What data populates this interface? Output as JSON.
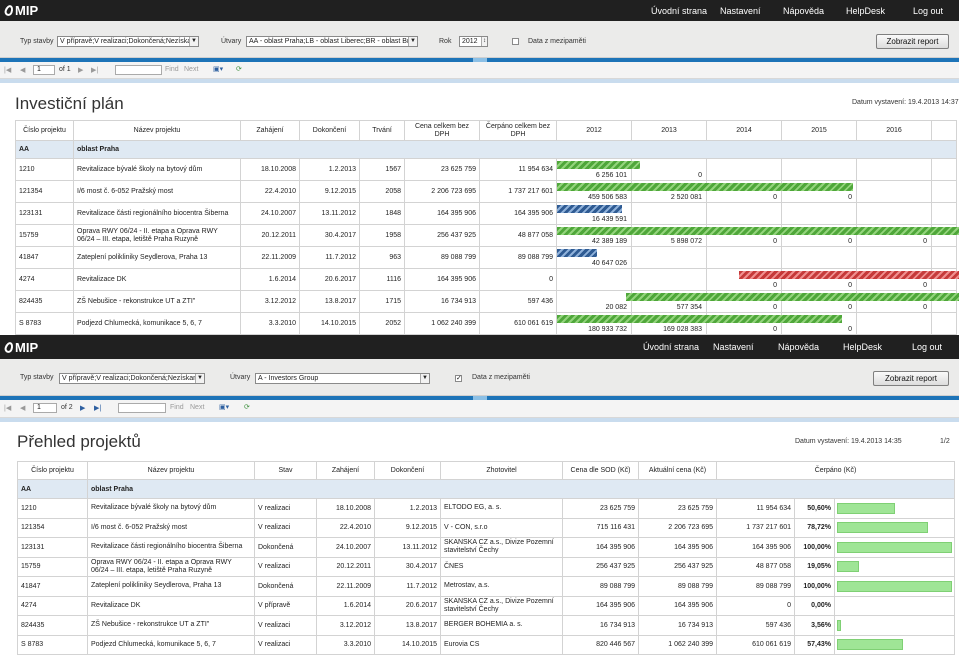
{
  "nav": {
    "logo": "MIP",
    "items": [
      "Úvodní strana",
      "Nastavení",
      "Nápověda",
      "HelpDesk",
      "Log out"
    ]
  },
  "top": {
    "filters": {
      "typ_label": "Typ stavby",
      "typ_value": "V přípravě;V realizaci;Dokončená;Nezískan",
      "utvary_label": "Útvary",
      "utvary_value": "AA - oblast Praha;LB - oblast Liberec;BR - oblast Br",
      "rok_label": "Rok",
      "rok_value": "2012",
      "cache_label": "Data z mezipaměti",
      "cache_checked": false,
      "show_button": "Zobrazit report"
    },
    "toolbar": {
      "page": "1",
      "of": "of 1",
      "find": "Find",
      "next": "Next"
    },
    "title": "Investiční plán",
    "date": "Datum vystavení: 19.4.2013 14:37",
    "headers": [
      "Číslo projektu",
      "Název projektu",
      "Zahájení",
      "Dokončení",
      "Trvání",
      "Cena celkem bez DPH",
      "Čerpáno celkem bez DPH",
      "2012",
      "2013",
      "2014",
      "2015",
      "2016"
    ],
    "group": {
      "code": "AA",
      "name": "oblast Praha"
    },
    "rows": [
      {
        "id": "1210",
        "name": "Revitalizace bývalé školy na bytový dům",
        "start": "18.10.2008",
        "end": "1.2.2013",
        "dur": "1567",
        "price": "23 625 759",
        "spent": "11 954 634",
        "vals": [
          "6 256 101",
          "0",
          "",
          "",
          ""
        ],
        "bars": [
          {
            "col": 0,
            "from": 0,
            "to": 1.1,
            "c": "g"
          }
        ]
      },
      {
        "id": "121354",
        "name": "I/6 most č. 6-052 Pražský most",
        "start": "22.4.2010",
        "end": "9.12.2015",
        "dur": "2058",
        "price": "2 206 723 695",
        "spent": "1 737 217 601",
        "vals": [
          "459 506 583",
          "2 520 081",
          "0",
          "0",
          ""
        ],
        "bars": [
          {
            "col": 0,
            "from": 0,
            "to": 3.95,
            "c": "g"
          }
        ]
      },
      {
        "id": "123131",
        "name": "Revitalizace části regionálního biocentra Šiberna",
        "start": "24.10.2007",
        "end": "13.11.2012",
        "dur": "1848",
        "price": "164 395 906",
        "spent": "164 395 906",
        "vals": [
          "16 439 591",
          "",
          "",
          "",
          ""
        ],
        "bars": [
          {
            "col": 0,
            "from": 0,
            "to": 0.87,
            "c": "b"
          }
        ]
      },
      {
        "id": "15759",
        "name": "Oprava RWY 06/24 - II. etapa a Oprava RWY 06/24 – III. etapa, letiště Praha Ruzyně",
        "start": "20.12.2011",
        "end": "30.4.2017",
        "dur": "1958",
        "price": "256 437 925",
        "spent": "48 877 058",
        "vals": [
          "42 389 189",
          "5 898 072",
          "0",
          "0",
          "0"
        ],
        "bars": [
          {
            "col": 0,
            "from": 0,
            "to": 5.4,
            "c": "g"
          }
        ]
      },
      {
        "id": "41847",
        "name": "Zateplení polikliniky Seydlerova, Praha 13",
        "start": "22.11.2009",
        "end": "11.7.2012",
        "dur": "963",
        "price": "89 088 799",
        "spent": "89 088 799",
        "vals": [
          "40 647 026",
          "",
          "",
          "",
          ""
        ],
        "bars": [
          {
            "col": 0,
            "from": 0,
            "to": 0.53,
            "c": "b"
          }
        ]
      },
      {
        "id": "4274",
        "name": "Revitalizace DK",
        "start": "1.6.2014",
        "end": "20.6.2017",
        "dur": "1116",
        "price": "164 395 906",
        "spent": "0",
        "vals": [
          "",
          "",
          "0",
          "0",
          "0"
        ],
        "bars": [
          {
            "col": 0,
            "from": 2.42,
            "to": 5.4,
            "c": "r"
          }
        ]
      },
      {
        "id": "824435",
        "name": "ZŠ Nebušice - rekonstrukce UT a ZTI\"",
        "start": "3.12.2012",
        "end": "13.8.2017",
        "dur": "1715",
        "price": "16 734 913",
        "spent": "597 436",
        "vals": [
          "20 082",
          "577 354",
          "0",
          "0",
          "0"
        ],
        "bars": [
          {
            "col": 0,
            "from": 0.92,
            "to": 5.4,
            "c": "g"
          }
        ]
      },
      {
        "id": "S 8783",
        "name": "Podjezd Chlumecká, komunikace 5, 6, 7",
        "start": "3.3.2010",
        "end": "14.10.2015",
        "dur": "2052",
        "price": "1 062 240 399",
        "spent": "610 061 619",
        "vals": [
          "180 933 732",
          "169 028 383",
          "0",
          "0",
          ""
        ],
        "bars": [
          {
            "col": 0,
            "from": 0,
            "to": 3.8,
            "c": "g"
          }
        ]
      }
    ]
  },
  "bottom": {
    "filters": {
      "typ_label": "Typ stavby",
      "typ_value": "V přípravě;V realizaci;Dokončená;Nezískan",
      "utvary_label": "Útvary",
      "utvary_value": "A - Investors Group",
      "cache_label": "Data z mezipaměti",
      "cache_checked": true,
      "show_button": "Zobrazit report"
    },
    "toolbar": {
      "page": "1",
      "of": "of 2",
      "find": "Find",
      "next": "Next"
    },
    "title": "Přehled projektů",
    "date": "Datum vystavení: 19.4.2013 14:35",
    "page_no": "1/2",
    "headers": [
      "Číslo projektu",
      "Název projektu",
      "Stav",
      "Zahájení",
      "Dokončení",
      "Zhotovitel",
      "Cena dle SOD (Kč)",
      "Aktuální cena (Kč)",
      "Čerpáno (Kč)"
    ],
    "group": {
      "code": "AA",
      "name": "oblast Praha"
    },
    "rows": [
      {
        "id": "1210",
        "name": "Revitalizace bývalé školy na bytový dům",
        "state": "V realizaci",
        "start": "18.10.2008",
        "end": "1.2.2013",
        "contractor": "ELTODO EG, a. s.",
        "sod": "23 625 759",
        "current": "23 625 759",
        "spent": "11 954 634",
        "pct": "50,60%",
        "p": 50.6
      },
      {
        "id": "121354",
        "name": "I/6 most č. 6-052 Pražský most",
        "state": "V realizaci",
        "start": "22.4.2010",
        "end": "9.12.2015",
        "contractor": "V - CON, s.r.o",
        "sod": "715 116 431",
        "current": "2 206 723 695",
        "spent": "1 737 217 601",
        "pct": "78,72%",
        "p": 78.72
      },
      {
        "id": "123131",
        "name": "Revitalizace části regionálního biocentra Šiberna",
        "state": "Dokončená",
        "start": "24.10.2007",
        "end": "13.11.2012",
        "contractor": "SKANSKA CZ a.s., Divize Pozemní stavitelství Čechy",
        "sod": "164 395 906",
        "current": "164 395 906",
        "spent": "164 395 906",
        "pct": "100,00%",
        "p": 100
      },
      {
        "id": "15759",
        "name": "Oprava RWY 06/24 - II. etapa a Oprava RWY 06/24 – III. etapa, letiště Praha Ruzyně",
        "state": "V realizaci",
        "start": "20.12.2011",
        "end": "30.4.2017",
        "contractor": "ČNES",
        "sod": "256 437 925",
        "current": "256 437 925",
        "spent": "48 877 058",
        "pct": "19,05%",
        "p": 19.05
      },
      {
        "id": "41847",
        "name": "Zateplení polikliniky Seydlerova, Praha 13",
        "state": "Dokončená",
        "start": "22.11.2009",
        "end": "11.7.2012",
        "contractor": "Metrostav, a.s.",
        "sod": "89 088 799",
        "current": "89 088 799",
        "spent": "89 088 799",
        "pct": "100,00%",
        "p": 100
      },
      {
        "id": "4274",
        "name": "Revitalizace DK",
        "state": "V přípravě",
        "start": "1.6.2014",
        "end": "20.6.2017",
        "contractor": "SKANSKA CZ a.s., Divize Pozemní stavitelství Čechy",
        "sod": "164 395 906",
        "current": "164 395 906",
        "spent": "0",
        "pct": "0,00%",
        "p": 0
      },
      {
        "id": "824435",
        "name": "ZŠ Nebušice - rekonstrukce UT a ZTI\"",
        "state": "V realizaci",
        "start": "3.12.2012",
        "end": "13.8.2017",
        "contractor": "BERGER BOHEMIA a. s.",
        "sod": "16 734 913",
        "current": "16 734 913",
        "spent": "597 436",
        "pct": "3,56%",
        "p": 3.56
      },
      {
        "id": "S 8783",
        "name": "Podjezd Chlumecká, komunikace 5, 6, 7",
        "state": "V realizaci",
        "start": "3.3.2010",
        "end": "14.10.2015",
        "contractor": "Eurovia CS",
        "sod": "820 446 567",
        "current": "1 062 240 399",
        "spent": "610 061 619",
        "pct": "57,43%",
        "p": 57.43
      }
    ]
  }
}
